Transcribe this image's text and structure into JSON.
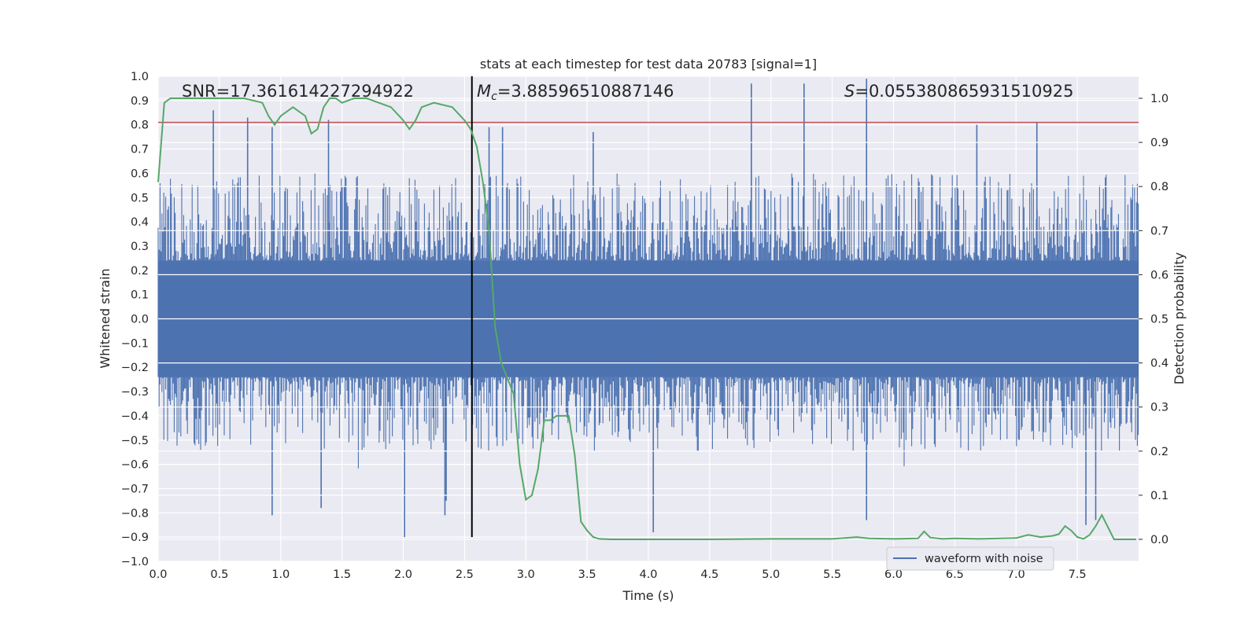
{
  "chart_data": {
    "type": "line",
    "title": "stats at each timestep for test data 20783 [signal=1]",
    "xlabel": "Time (s)",
    "ylabel_left": "Whitened strain",
    "ylabel_right": "Detection probability",
    "xlim": [
      0.0,
      8.0
    ],
    "ylim_left": [
      -1.0,
      1.0
    ],
    "ylim_right": [
      -0.05,
      1.05
    ],
    "x_ticks": [
      "0.0",
      "0.5",
      "1.0",
      "1.5",
      "2.0",
      "2.5",
      "3.0",
      "3.5",
      "4.0",
      "4.5",
      "5.0",
      "5.5",
      "6.0",
      "6.5",
      "7.0",
      "7.5"
    ],
    "y_ticks_left": [
      "1.0",
      "0.9",
      "0.8",
      "0.7",
      "0.6",
      "0.5",
      "0.4",
      "0.3",
      "0.2",
      "0.1",
      "0.0",
      "-0.1",
      "-0.2",
      "-0.3",
      "-0.4",
      "-0.5",
      "-0.6",
      "-0.7",
      "-0.8",
      "-0.9",
      "-1.0"
    ],
    "y_ticks_right": [
      "1.0",
      "0.9",
      "0.8",
      "0.7",
      "0.6",
      "0.5",
      "0.4",
      "0.3",
      "0.2",
      "0.1",
      "0.0"
    ],
    "annotations": {
      "snr": "SNR=17.361614227294922",
      "mc_symbol": "M",
      "mc_sub": "c",
      "mc_value": "=3.88596510887146",
      "s_symbol": "S",
      "s_value": "=0.055380865931510925"
    },
    "threshold_line": {
      "y": 0.81,
      "color": "#c44e52"
    },
    "event_marker": {
      "x": 2.56,
      "y_range": [
        -0.9,
        1.0
      ],
      "color": "#000000"
    },
    "series": [
      {
        "name": "waveform with noise",
        "color": "#4c72b0",
        "band_core": [
          -0.24,
          0.24
        ],
        "typical_range": [
          -0.55,
          0.6
        ],
        "spikes": [
          {
            "x": 0.45,
            "y": 0.86
          },
          {
            "x": 0.73,
            "y": 0.83
          },
          {
            "x": 0.93,
            "y": 0.79
          },
          {
            "x": 1.39,
            "y": 0.82
          },
          {
            "x": 2.7,
            "y": 0.79
          },
          {
            "x": 2.81,
            "y": 0.79
          },
          {
            "x": 3.55,
            "y": 0.77
          },
          {
            "x": 4.84,
            "y": 0.97
          },
          {
            "x": 5.27,
            "y": 0.97
          },
          {
            "x": 5.78,
            "y": 0.99
          },
          {
            "x": 6.68,
            "y": 0.8
          },
          {
            "x": 7.17,
            "y": 0.81
          },
          {
            "x": 2.01,
            "y": -0.9
          },
          {
            "x": 0.93,
            "y": -0.81
          },
          {
            "x": 1.33,
            "y": -0.78
          },
          {
            "x": 2.34,
            "y": -0.81
          },
          {
            "x": 4.04,
            "y": -0.88
          },
          {
            "x": 5.78,
            "y": -0.83
          },
          {
            "x": 7.57,
            "y": -0.85
          },
          {
            "x": 7.65,
            "y": -0.83
          },
          {
            "x": 2.35,
            "y": -0.75
          }
        ]
      },
      {
        "name": "detection probability",
        "color": "#55a868",
        "axis": "right",
        "x": [
          0.0,
          0.05,
          0.1,
          0.2,
          0.3,
          0.5,
          0.7,
          0.85,
          0.9,
          0.95,
          1.0,
          1.1,
          1.2,
          1.25,
          1.3,
          1.35,
          1.4,
          1.45,
          1.5,
          1.6,
          1.7,
          1.8,
          1.9,
          2.0,
          2.05,
          2.1,
          2.15,
          2.25,
          2.4,
          2.5,
          2.55,
          2.6,
          2.65,
          2.7,
          2.75,
          2.8,
          2.9,
          2.95,
          3.0,
          3.05,
          3.1,
          3.15,
          3.2,
          3.25,
          3.3,
          3.35,
          3.4,
          3.45,
          3.5,
          3.55,
          3.6,
          3.7,
          4.0,
          4.5,
          5.0,
          5.5,
          5.6,
          5.7,
          5.8,
          6.0,
          6.2,
          6.25,
          6.3,
          6.4,
          6.5,
          6.7,
          7.0,
          7.1,
          7.2,
          7.3,
          7.35,
          7.4,
          7.45,
          7.5,
          7.55,
          7.6,
          7.65,
          7.7,
          7.8,
          7.98
        ],
        "y": [
          0.81,
          0.99,
          1.0,
          1.0,
          1.0,
          1.0,
          1.0,
          0.99,
          0.96,
          0.94,
          0.96,
          0.98,
          0.96,
          0.92,
          0.93,
          0.98,
          1.0,
          1.0,
          0.99,
          1.0,
          1.0,
          0.99,
          0.98,
          0.95,
          0.93,
          0.95,
          0.98,
          0.99,
          0.98,
          0.95,
          0.93,
          0.89,
          0.81,
          0.7,
          0.48,
          0.4,
          0.33,
          0.17,
          0.09,
          0.1,
          0.16,
          0.27,
          0.27,
          0.28,
          0.28,
          0.28,
          0.19,
          0.04,
          0.02,
          0.005,
          0.001,
          0.0,
          0.0,
          0.0,
          0.001,
          0.001,
          0.003,
          0.005,
          0.002,
          0.001,
          0.002,
          0.018,
          0.004,
          0.001,
          0.002,
          0.001,
          0.003,
          0.01,
          0.005,
          0.008,
          0.012,
          0.03,
          0.02,
          0.005,
          0.001,
          0.01,
          0.03,
          0.055,
          0.0,
          0.0
        ]
      }
    ],
    "legend": {
      "label": "waveform with noise",
      "position": "lower-right"
    }
  }
}
